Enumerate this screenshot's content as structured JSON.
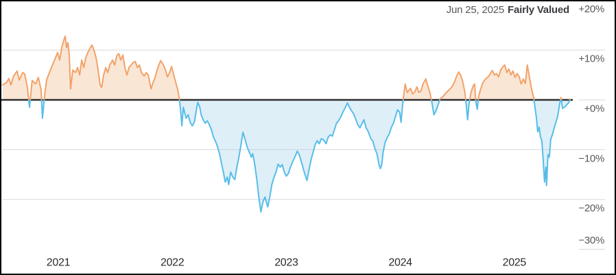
{
  "header": {
    "date_label": "Jun 25, 2025",
    "status_label": "Fairly Valued"
  },
  "chart_data": {
    "type": "area",
    "x_axis": {
      "ticks": [
        {
          "label": "2021",
          "t": 2021
        },
        {
          "label": "2022",
          "t": 2022
        },
        {
          "label": "2023",
          "t": 2023
        },
        {
          "label": "2024",
          "t": 2024
        },
        {
          "label": "2025",
          "t": 2025
        }
      ]
    },
    "y_axis": {
      "unit": "%",
      "range": [
        -30,
        20
      ],
      "ticks": [
        {
          "label": "+20%",
          "value": 20
        },
        {
          "label": "+10%",
          "value": 10
        },
        {
          "label": "+0%",
          "value": 0
        },
        {
          "label": "−10%",
          "value": -10
        },
        {
          "label": "−20%",
          "value": -20
        },
        {
          "label": "−30%",
          "value": -30
        }
      ]
    },
    "baseline": 0,
    "colors": {
      "overvalued_line": "#F2A269",
      "overvalued_fill": "#FAE6D5",
      "undervalued_line": "#56BDE8",
      "undervalued_fill": "#DEEFF8",
      "zero_line": "#2F2F31",
      "gridline": "rgba(185,185,190,0.55)",
      "gutter_gridline": "#D6D6D6"
    },
    "series": [
      [
        2020.512,
        3.0
      ],
      [
        2020.548,
        3.5
      ],
      [
        2020.566,
        4.3
      ],
      [
        2020.584,
        3.0
      ],
      [
        2020.608,
        4.8
      ],
      [
        2020.639,
        5.8
      ],
      [
        2020.657,
        4.0
      ],
      [
        2020.687,
        5.5
      ],
      [
        2020.705,
        5.2
      ],
      [
        2020.729,
        2.5
      ],
      [
        2020.747,
        -1.5
      ],
      [
        2020.771,
        3.9
      ],
      [
        2020.801,
        3.2
      ],
      [
        2020.825,
        4.5
      ],
      [
        2020.849,
        2.0
      ],
      [
        2020.861,
        -3.7
      ],
      [
        2020.88,
        1.0
      ],
      [
        2020.898,
        4.0
      ],
      [
        2020.922,
        5.5
      ],
      [
        2020.94,
        6.5
      ],
      [
        2020.958,
        7.5
      ],
      [
        2020.976,
        8.5
      ],
      [
        2020.994,
        9.5
      ],
      [
        2021.012,
        8.0
      ],
      [
        2021.03,
        10.5
      ],
      [
        2021.048,
        12.0
      ],
      [
        2021.06,
        12.8
      ],
      [
        2021.072,
        10.5
      ],
      [
        2021.084,
        11.5
      ],
      [
        2021.096,
        9.0
      ],
      [
        2021.108,
        2.2
      ],
      [
        2021.127,
        6.0
      ],
      [
        2021.151,
        5.5
      ],
      [
        2021.169,
        6.5
      ],
      [
        2021.187,
        5.0
      ],
      [
        2021.205,
        8.0
      ],
      [
        2021.223,
        6.5
      ],
      [
        2021.241,
        8.5
      ],
      [
        2021.259,
        9.5
      ],
      [
        2021.277,
        10.3
      ],
      [
        2021.295,
        11.0
      ],
      [
        2021.313,
        10.0
      ],
      [
        2021.331,
        8.5
      ],
      [
        2021.349,
        6.0
      ],
      [
        2021.367,
        3.0
      ],
      [
        2021.38,
        2.5
      ],
      [
        2021.398,
        5.0
      ],
      [
        2021.416,
        6.5
      ],
      [
        2021.434,
        5.5
      ],
      [
        2021.452,
        7.0
      ],
      [
        2021.476,
        8.0
      ],
      [
        2021.494,
        7.0
      ],
      [
        2021.512,
        8.8
      ],
      [
        2021.53,
        9.3
      ],
      [
        2021.548,
        8.0
      ],
      [
        2021.566,
        9.0
      ],
      [
        2021.584,
        6.5
      ],
      [
        2021.602,
        5.0
      ],
      [
        2021.62,
        6.5
      ],
      [
        2021.639,
        7.0
      ],
      [
        2021.657,
        7.5
      ],
      [
        2021.675,
        7.7
      ],
      [
        2021.693,
        6.5
      ],
      [
        2021.711,
        7.0
      ],
      [
        2021.729,
        5.5
      ],
      [
        2021.753,
        4.8
      ],
      [
        2021.771,
        5.5
      ],
      [
        2021.789,
        5.0
      ],
      [
        2021.813,
        2.2
      ],
      [
        2021.831,
        3.5
      ],
      [
        2021.849,
        4.5
      ],
      [
        2021.873,
        6.5
      ],
      [
        2021.898,
        7.9
      ],
      [
        2021.922,
        7.0
      ],
      [
        2021.94,
        6.0
      ],
      [
        2021.958,
        4.6
      ],
      [
        2021.976,
        5.5
      ],
      [
        2021.994,
        6.7
      ],
      [
        2022.012,
        5.0
      ],
      [
        2022.03,
        3.5
      ],
      [
        2022.048,
        2.0
      ],
      [
        2022.06,
        0.5
      ],
      [
        2022.072,
        -2.0
      ],
      [
        2022.084,
        -5.2
      ],
      [
        2022.096,
        -1.5
      ],
      [
        2022.108,
        -2.5
      ],
      [
        2022.121,
        -3.7
      ],
      [
        2022.139,
        -3.0
      ],
      [
        2022.157,
        -4.5
      ],
      [
        2022.175,
        -5.2
      ],
      [
        2022.193,
        -4.5
      ],
      [
        2022.211,
        -2.0
      ],
      [
        2022.223,
        -0.5
      ],
      [
        2022.241,
        -1.5
      ],
      [
        2022.253,
        -3.0
      ],
      [
        2022.271,
        -4.0
      ],
      [
        2022.289,
        -4.7
      ],
      [
        2022.307,
        -4.2
      ],
      [
        2022.325,
        -5.0
      ],
      [
        2022.343,
        -6.0
      ],
      [
        2022.361,
        -7.5
      ],
      [
        2022.38,
        -8.4
      ],
      [
        2022.398,
        -9.5
      ],
      [
        2022.416,
        -11.0
      ],
      [
        2022.434,
        -13.0
      ],
      [
        2022.452,
        -15.0
      ],
      [
        2022.464,
        -16.5
      ],
      [
        2022.482,
        -15.5
      ],
      [
        2022.494,
        -17.0
      ],
      [
        2022.512,
        -14.5
      ],
      [
        2022.53,
        -15.5
      ],
      [
        2022.548,
        -16.0
      ],
      [
        2022.566,
        -13.5
      ],
      [
        2022.584,
        -11.5
      ],
      [
        2022.602,
        -9.0
      ],
      [
        2022.62,
        -6.5
      ],
      [
        2022.639,
        -8.0
      ],
      [
        2022.657,
        -9.5
      ],
      [
        2022.675,
        -10.5
      ],
      [
        2022.693,
        -11.5
      ],
      [
        2022.705,
        -10.8
      ],
      [
        2022.723,
        -13.0
      ],
      [
        2022.741,
        -16.0
      ],
      [
        2022.759,
        -19.5
      ],
      [
        2022.777,
        -22.5
      ],
      [
        2022.795,
        -20.5
      ],
      [
        2022.813,
        -19.5
      ],
      [
        2022.825,
        -20.5
      ],
      [
        2022.837,
        -21.5
      ],
      [
        2022.855,
        -19.5
      ],
      [
        2022.873,
        -17.0
      ],
      [
        2022.892,
        -15.5
      ],
      [
        2022.91,
        -14.5
      ],
      [
        2022.928,
        -12.9
      ],
      [
        2022.946,
        -13.5
      ],
      [
        2022.964,
        -13.0
      ],
      [
        2022.982,
        -14.5
      ],
      [
        2023.0,
        -15.3
      ],
      [
        2023.018,
        -14.8
      ],
      [
        2023.036,
        -13.5
      ],
      [
        2023.054,
        -12.5
      ],
      [
        2023.078,
        -11.3
      ],
      [
        2023.096,
        -10.3
      ],
      [
        2023.114,
        -11.0
      ],
      [
        2023.139,
        -13.0
      ],
      [
        2023.157,
        -14.5
      ],
      [
        2023.181,
        -16.2
      ],
      [
        2023.199,
        -14.0
      ],
      [
        2023.217,
        -12.0
      ],
      [
        2023.235,
        -10.5
      ],
      [
        2023.253,
        -9.0
      ],
      [
        2023.271,
        -8.2
      ],
      [
        2023.289,
        -8.8
      ],
      [
        2023.307,
        -7.8
      ],
      [
        2023.325,
        -8.0
      ],
      [
        2023.349,
        -8.8
      ],
      [
        2023.367,
        -7.5
      ],
      [
        2023.386,
        -7.0
      ],
      [
        2023.404,
        -7.3
      ],
      [
        2023.422,
        -6.0
      ],
      [
        2023.44,
        -4.7
      ],
      [
        2023.458,
        -4.2
      ],
      [
        2023.476,
        -3.5
      ],
      [
        2023.5,
        -2.3
      ],
      [
        2023.518,
        -1.5
      ],
      [
        2023.536,
        -0.6
      ],
      [
        2023.554,
        -1.5
      ],
      [
        2023.572,
        -2.2
      ],
      [
        2023.59,
        -2.8
      ],
      [
        2023.608,
        -3.8
      ],
      [
        2023.627,
        -5.0
      ],
      [
        2023.645,
        -5.6
      ],
      [
        2023.663,
        -4.8
      ],
      [
        2023.681,
        -4.0
      ],
      [
        2023.699,
        -5.6
      ],
      [
        2023.717,
        -6.3
      ],
      [
        2023.741,
        -7.8
      ],
      [
        2023.759,
        -8.3
      ],
      [
        2023.777,
        -9.8
      ],
      [
        2023.795,
        -10.8
      ],
      [
        2023.813,
        -13.0
      ],
      [
        2023.825,
        -13.8
      ],
      [
        2023.837,
        -13.0
      ],
      [
        2023.849,
        -10.5
      ],
      [
        2023.867,
        -8.5
      ],
      [
        2023.886,
        -7.5
      ],
      [
        2023.904,
        -6.8
      ],
      [
        2023.922,
        -5.5
      ],
      [
        2023.94,
        -4.7
      ],
      [
        2023.958,
        -3.3
      ],
      [
        2023.976,
        -2.0
      ],
      [
        2023.994,
        -2.5
      ],
      [
        2024.006,
        -4.5
      ],
      [
        2024.018,
        -1.5
      ],
      [
        2024.03,
        1.0
      ],
      [
        2024.042,
        3.2
      ],
      [
        2024.06,
        1.5
      ],
      [
        2024.078,
        2.0
      ],
      [
        2024.09,
        2.3
      ],
      [
        2024.108,
        1.2
      ],
      [
        2024.127,
        1.6
      ],
      [
        2024.145,
        2.6
      ],
      [
        2024.163,
        1.5
      ],
      [
        2024.181,
        1.8
      ],
      [
        2024.199,
        3.2
      ],
      [
        2024.223,
        4.2
      ],
      [
        2024.241,
        2.8
      ],
      [
        2024.259,
        1.5
      ],
      [
        2024.277,
        -0.5
      ],
      [
        2024.295,
        -3.0
      ],
      [
        2024.313,
        -2.2
      ],
      [
        2024.331,
        -1.0
      ],
      [
        2024.349,
        0.2
      ],
      [
        2024.367,
        0.5
      ],
      [
        2024.386,
        1.0
      ],
      [
        2024.404,
        1.5
      ],
      [
        2024.428,
        2.0
      ],
      [
        2024.452,
        2.6
      ],
      [
        2024.476,
        3.6
      ],
      [
        2024.494,
        4.8
      ],
      [
        2024.512,
        5.6
      ],
      [
        2024.53,
        4.9
      ],
      [
        2024.548,
        3.6
      ],
      [
        2024.566,
        1.5
      ],
      [
        2024.578,
        -1.0
      ],
      [
        2024.59,
        -4.0
      ],
      [
        2024.602,
        -0.8
      ],
      [
        2024.62,
        1.5
      ],
      [
        2024.639,
        2.8
      ],
      [
        2024.651,
        3.2
      ],
      [
        2024.663,
        -0.5
      ],
      [
        2024.675,
        -1.9
      ],
      [
        2024.687,
        0.8
      ],
      [
        2024.705,
        2.2
      ],
      [
        2024.723,
        3.4
      ],
      [
        2024.747,
        4.2
      ],
      [
        2024.765,
        4.5
      ],
      [
        2024.783,
        5.0
      ],
      [
        2024.807,
        5.9
      ],
      [
        2024.825,
        5.0
      ],
      [
        2024.843,
        5.3
      ],
      [
        2024.861,
        4.6
      ],
      [
        2024.88,
        6.0
      ],
      [
        2024.898,
        6.6
      ],
      [
        2024.916,
        7.0
      ],
      [
        2024.934,
        5.5
      ],
      [
        2024.952,
        6.2
      ],
      [
        2024.97,
        5.0
      ],
      [
        2024.988,
        5.8
      ],
      [
        2025.006,
        4.5
      ],
      [
        2025.024,
        5.3
      ],
      [
        2025.042,
        4.7
      ],
      [
        2025.06,
        3.2
      ],
      [
        2025.078,
        4.2
      ],
      [
        2025.096,
        3.3
      ],
      [
        2025.114,
        7.0
      ],
      [
        2025.133,
        4.5
      ],
      [
        2025.151,
        2.2
      ],
      [
        2025.169,
        0.5
      ],
      [
        2025.181,
        -1.5
      ],
      [
        2025.193,
        -3.5
      ],
      [
        2025.205,
        -6.4
      ],
      [
        2025.217,
        -5.5
      ],
      [
        2025.229,
        -7.5
      ],
      [
        2025.241,
        -8.2
      ],
      [
        2025.253,
        -12.0
      ],
      [
        2025.265,
        -16.5
      ],
      [
        2025.277,
        -13.5
      ],
      [
        2025.283,
        -17.2
      ],
      [
        2025.295,
        -11.0
      ],
      [
        2025.307,
        -11.5
      ],
      [
        2025.319,
        -8.0
      ],
      [
        2025.337,
        -6.7
      ],
      [
        2025.355,
        -5.2
      ],
      [
        2025.38,
        -3.3
      ],
      [
        2025.398,
        -0.8
      ],
      [
        2025.41,
        0.5
      ],
      [
        2025.422,
        -1.7
      ],
      [
        2025.44,
        -1.5
      ],
      [
        2025.458,
        -1.0
      ],
      [
        2025.476,
        -0.6
      ],
      [
        2025.488,
        0.1
      ]
    ]
  }
}
